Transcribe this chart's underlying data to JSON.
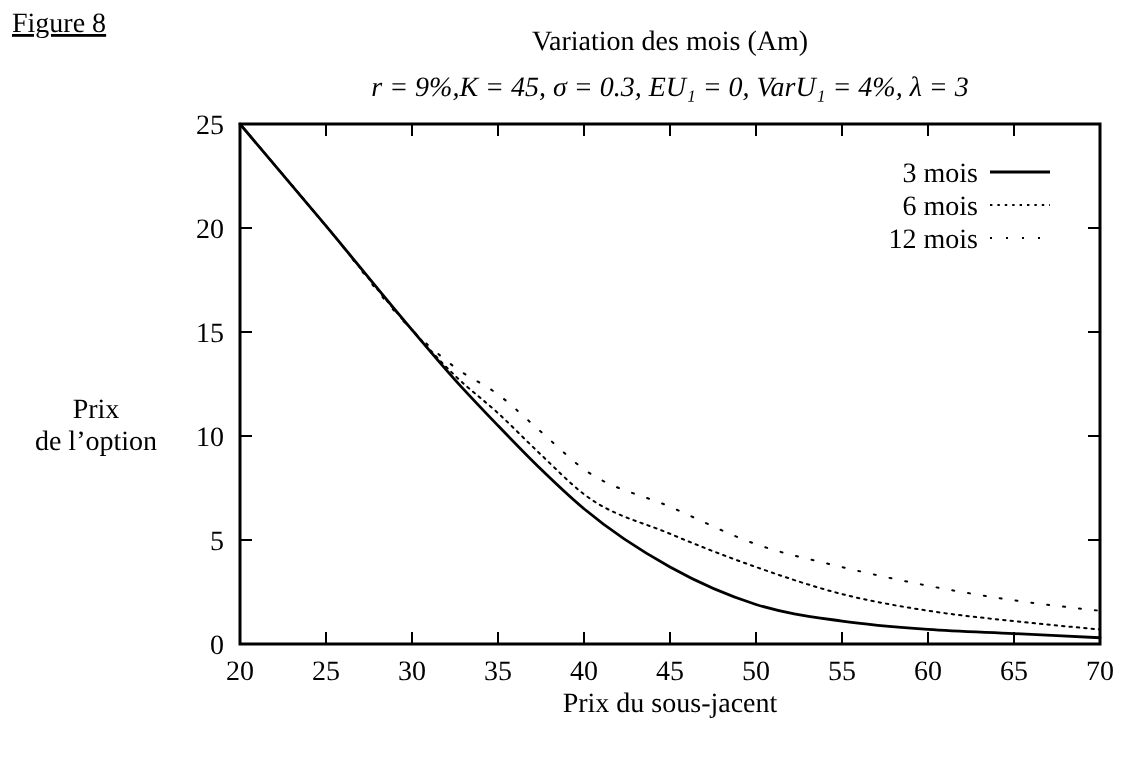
{
  "chart_data": {
    "type": "line",
    "title": "Variation des mois (Am)",
    "subtitle": "r = 9%,K = 45, σ = 0.3, EU₁ = 0, VarU₁ = 4%, λ = 3",
    "xlabel": "Prix du sous-jacent",
    "ylabel": "Prix\nde l’option",
    "annotations": [
      "Figure 8"
    ],
    "x": [
      20,
      25,
      30,
      32.5,
      35,
      37.5,
      40,
      45,
      50,
      55,
      60,
      65,
      70
    ],
    "series": [
      {
        "name": "3 mois",
        "color": "#000000",
        "line_style": "solid",
        "values": [
          25,
          20.1,
          15.1,
          12.7,
          10.5,
          8.4,
          6.5,
          3.7,
          1.9,
          1.1,
          0.7,
          0.5,
          0.3
        ]
      },
      {
        "name": "6 mois",
        "color": "#000000",
        "line_style": "dashed",
        "values": [
          25,
          20.1,
          15.1,
          12.9,
          11.1,
          9.1,
          7.2,
          5.3,
          3.7,
          2.4,
          1.6,
          1.1,
          0.7
        ]
      },
      {
        "name": "12 mois",
        "color": "#000000",
        "line_style": "dotted",
        "values": [
          25,
          20.1,
          15.1,
          13.3,
          12.0,
          10.2,
          8.4,
          6.6,
          4.8,
          3.7,
          2.8,
          2.1,
          1.6
        ]
      }
    ],
    "xlim": [
      20,
      70
    ],
    "ylim": [
      0,
      25
    ],
    "xticks": [
      20,
      25,
      30,
      35,
      40,
      45,
      50,
      55,
      60,
      65,
      70
    ],
    "yticks": [
      0,
      5,
      10,
      15,
      20,
      25
    ],
    "grid": false,
    "legend": "top right"
  }
}
